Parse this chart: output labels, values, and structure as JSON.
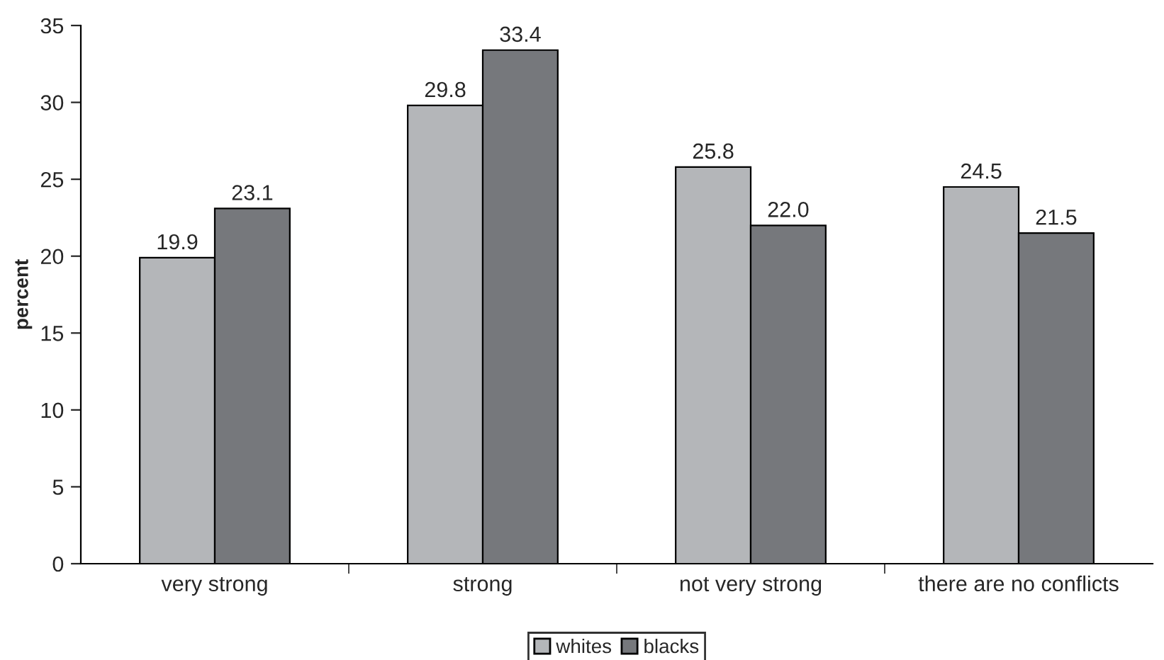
{
  "chart_data": {
    "type": "bar",
    "ylabel": "percent",
    "categories": [
      "very strong",
      "strong",
      "not very strong",
      "there are no conflicts"
    ],
    "series": [
      {
        "name": "whites",
        "color": "#b4b6b9",
        "values": [
          19.9,
          29.8,
          25.8,
          24.5
        ],
        "value_labels": [
          "19.9",
          "29.8",
          "25.8",
          "24.5"
        ]
      },
      {
        "name": "blacks",
        "color": "#76787c",
        "values": [
          23.1,
          33.4,
          22.0,
          21.5
        ],
        "value_labels": [
          "23.1",
          "33.4",
          "22.0",
          "21.5"
        ]
      }
    ],
    "ylim": [
      0,
      35
    ],
    "yticks": [
      0,
      5,
      10,
      15,
      20,
      25,
      30,
      35
    ],
    "grid": false,
    "legend": "bottom"
  }
}
